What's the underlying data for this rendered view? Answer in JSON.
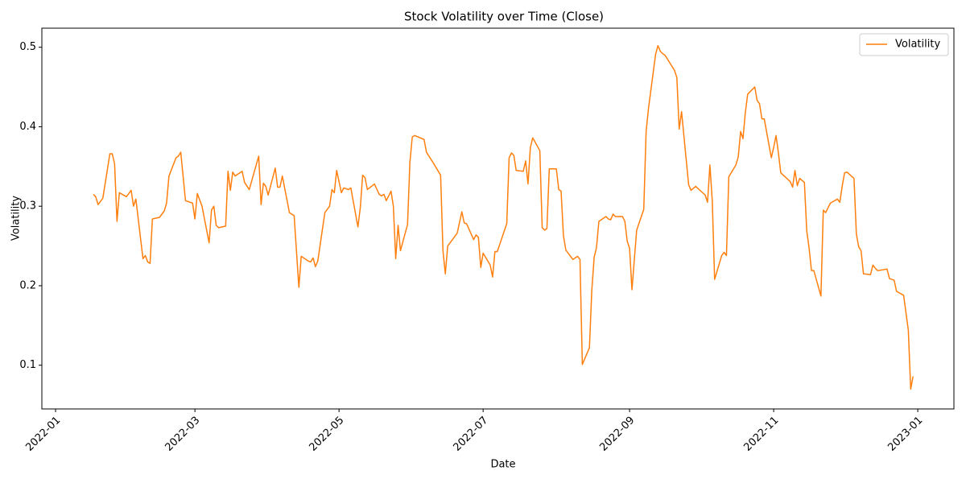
{
  "chart_data": {
    "type": "line",
    "title": "Stock Volatility over Time (Close)",
    "x_label": "Date",
    "y_label": "Volatility",
    "legend": "upper right",
    "x": [
      19009,
      19010,
      19011,
      19013,
      19016,
      19017,
      19018,
      19019,
      19020,
      19023,
      19025,
      19026,
      19027,
      19030,
      19031,
      19032,
      19033,
      19034,
      19037,
      19039,
      19040,
      19041,
      19044,
      19045,
      19046,
      19048,
      19051,
      19052,
      19053,
      19055,
      19058,
      19059,
      19060,
      19061,
      19062,
      19065,
      19066,
      19067,
      19068,
      19069,
      19072,
      19073,
      19075,
      19079,
      19080,
      19081,
      19082,
      19083,
      19086,
      19087,
      19088,
      19089,
      19092,
      19094,
      19096,
      19097,
      19100,
      19101,
      19102,
      19103,
      19104,
      19107,
      19109,
      19110,
      19111,
      19112,
      19114,
      19115,
      19117,
      19118,
      19121,
      19122,
      19123,
      19124,
      19125,
      19128,
      19130,
      19131,
      19132,
      19133,
      19135,
      19136,
      19137,
      19138,
      19139,
      19142,
      19143,
      19144,
      19145,
      19149,
      19150,
      19153,
      19156,
      19157,
      19158,
      19159,
      19163,
      19165,
      19166,
      19167,
      19170,
      19171,
      19172,
      19173,
      19174,
      19177,
      19178,
      19179,
      19180,
      19184,
      19185,
      19186,
      19187,
      19188,
      19191,
      19192,
      19193,
      19194,
      19195,
      19198,
      19199,
      19200,
      19201,
      19202,
      19205,
      19206,
      19207,
      19208,
      19209,
      19212,
      19214,
      19215,
      19216,
      19219,
      19220,
      19221,
      19222,
      19223,
      19226,
      19227,
      19228,
      19229,
      19230,
      19233,
      19234,
      19235,
      19236,
      19237,
      19239,
      19242,
      19243,
      19244,
      19247,
      19248,
      19249,
      19250,
      19251,
      19255,
      19256,
      19257,
      19258,
      19261,
      19262,
      19264,
      19268,
      19269,
      19270,
      19271,
      19272,
      19275,
      19276,
      19277,
      19278,
      19281,
      19282,
      19283,
      19284,
      19285,
      19286,
      19289,
      19290,
      19291,
      19292,
      19293,
      19296,
      19297,
      19298,
      19299,
      19300,
      19304,
      19305,
      19306,
      19307,
      19308,
      19310,
      19311,
      19312,
      19313,
      19314,
      19317,
      19318,
      19319,
      19321,
      19324,
      19325,
      19326,
      19327,
      19328,
      19331,
      19332,
      19333,
      19334,
      19335,
      19338,
      19339,
      19340,
      19341,
      19345,
      19346,
      19348,
      19349,
      19352,
      19354,
      19355,
      19356
    ],
    "series": [
      {
        "name": "Volatility",
        "color": "#ff7f0e",
        "values": [
          0.315,
          0.312,
          0.302,
          0.31,
          0.366,
          0.366,
          0.353,
          0.281,
          0.317,
          0.312,
          0.32,
          0.3,
          0.309,
          0.234,
          0.238,
          0.23,
          0.228,
          0.284,
          0.286,
          0.294,
          0.304,
          0.338,
          0.361,
          0.363,
          0.368,
          0.307,
          0.304,
          0.284,
          0.316,
          0.3,
          0.254,
          0.295,
          0.3,
          0.276,
          0.273,
          0.275,
          0.344,
          0.32,
          0.343,
          0.338,
          0.344,
          0.33,
          0.321,
          0.363,
          0.302,
          0.329,
          0.325,
          0.314,
          0.348,
          0.324,
          0.324,
          0.338,
          0.292,
          0.288,
          0.198,
          0.237,
          0.231,
          0.23,
          0.235,
          0.224,
          0.231,
          0.292,
          0.3,
          0.321,
          0.317,
          0.345,
          0.317,
          0.323,
          0.321,
          0.323,
          0.274,
          0.298,
          0.339,
          0.336,
          0.321,
          0.328,
          0.315,
          0.313,
          0.315,
          0.307,
          0.319,
          0.3,
          0.234,
          0.276,
          0.244,
          0.277,
          0.355,
          0.387,
          0.389,
          0.384,
          0.368,
          0.354,
          0.339,
          0.244,
          0.215,
          0.25,
          0.266,
          0.293,
          0.279,
          0.278,
          0.258,
          0.264,
          0.261,
          0.223,
          0.241,
          0.226,
          0.211,
          0.243,
          0.243,
          0.278,
          0.361,
          0.367,
          0.364,
          0.345,
          0.344,
          0.357,
          0.328,
          0.374,
          0.386,
          0.37,
          0.273,
          0.27,
          0.272,
          0.347,
          0.347,
          0.321,
          0.319,
          0.263,
          0.245,
          0.233,
          0.237,
          0.233,
          0.101,
          0.122,
          0.194,
          0.236,
          0.248,
          0.281,
          0.287,
          0.284,
          0.283,
          0.29,
          0.287,
          0.287,
          0.281,
          0.256,
          0.247,
          0.195,
          0.27,
          0.296,
          0.394,
          0.423,
          0.491,
          0.502,
          0.495,
          0.492,
          0.49,
          0.471,
          0.462,
          0.397,
          0.419,
          0.327,
          0.32,
          0.325,
          0.314,
          0.305,
          0.352,
          0.307,
          0.208,
          0.238,
          0.242,
          0.238,
          0.337,
          0.352,
          0.362,
          0.394,
          0.385,
          0.418,
          0.441,
          0.45,
          0.433,
          0.429,
          0.41,
          0.41,
          0.361,
          0.374,
          0.389,
          0.367,
          0.342,
          0.331,
          0.324,
          0.345,
          0.326,
          0.335,
          0.33,
          0.269,
          0.247,
          0.219,
          0.219,
          0.187,
          0.295,
          0.292,
          0.304,
          0.309,
          0.305,
          0.325,
          0.342,
          0.343,
          0.335,
          0.265,
          0.249,
          0.244,
          0.215,
          0.214,
          0.226,
          0.222,
          0.219,
          0.221,
          0.209,
          0.207,
          0.193,
          0.188,
          0.144,
          0.07,
          0.086
        ]
      }
    ],
    "xlim": [
      18987.2,
      19373.3
    ],
    "xticks": [
      {
        "value": 18993,
        "label": "2022-01"
      },
      {
        "value": 19052,
        "label": "2022-03"
      },
      {
        "value": 19113,
        "label": "2022-05"
      },
      {
        "value": 19174,
        "label": "2022-07"
      },
      {
        "value": 19236,
        "label": "2022-09"
      },
      {
        "value": 19297,
        "label": "2022-11"
      },
      {
        "value": 19358,
        "label": "2023-01"
      }
    ],
    "ylim": [
      0.045,
      0.524
    ],
    "yticks": [
      0.1,
      0.2,
      0.3,
      0.4,
      0.5
    ]
  }
}
